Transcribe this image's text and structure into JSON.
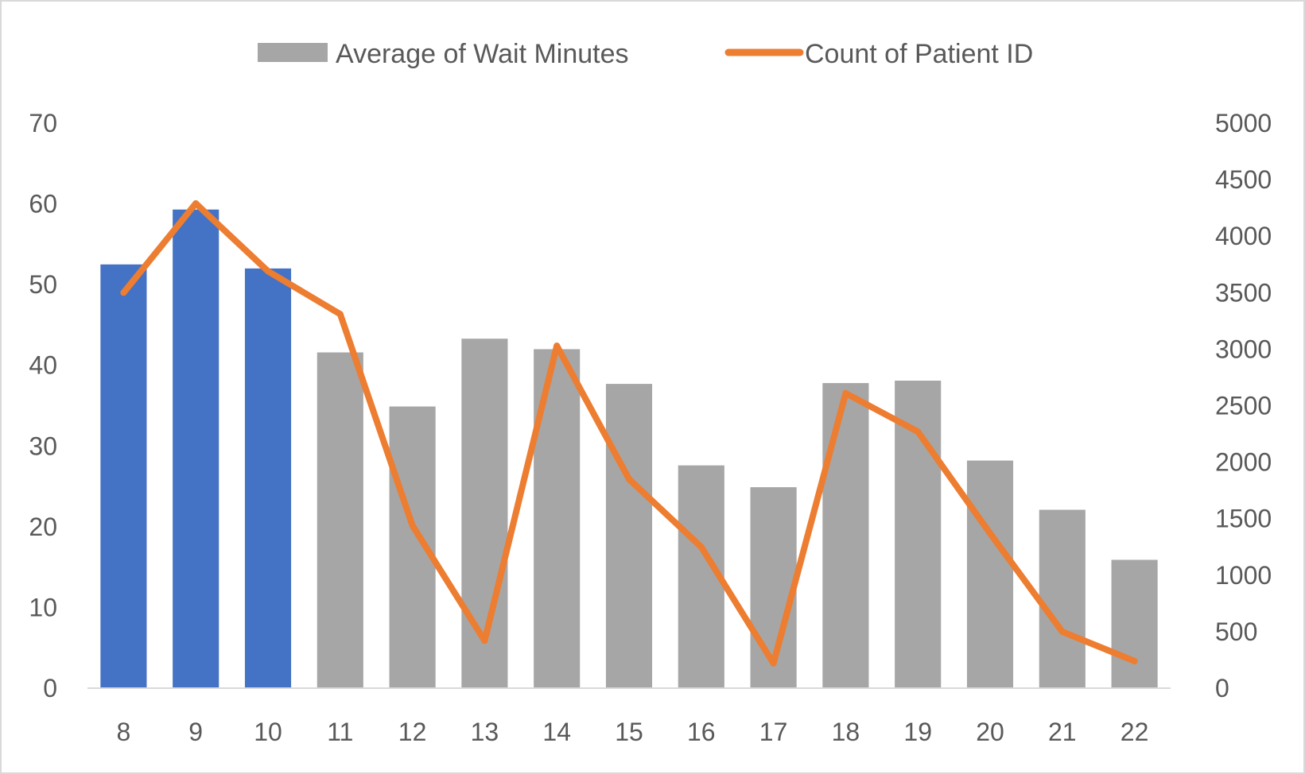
{
  "chart_data": {
    "type": "bar",
    "categories": [
      "8",
      "9",
      "10",
      "11",
      "12",
      "13",
      "14",
      "15",
      "16",
      "17",
      "18",
      "19",
      "20",
      "21",
      "22"
    ],
    "series": [
      {
        "name": "Average of Wait Minutes",
        "kind": "bar",
        "axis": "left",
        "color": "#a6a6a6",
        "highlight_color": "#4472c4",
        "highlight_categories": [
          "8",
          "9",
          "10"
        ],
        "values": [
          52.5,
          59.3,
          52,
          41.6,
          34.9,
          43.3,
          42,
          37.7,
          27.6,
          24.9,
          37.8,
          38.1,
          28.2,
          22.1,
          15.9
        ]
      },
      {
        "name": "Count of Patient ID",
        "kind": "line",
        "axis": "right",
        "color": "#ed7d31",
        "values": [
          3500,
          4290,
          3690,
          3310,
          1440,
          420,
          3030,
          1850,
          1250,
          220,
          2610,
          2270,
          1370,
          500,
          240
        ]
      }
    ],
    "y_left": {
      "min": 0,
      "max": 70,
      "ticks": [
        "0",
        "10",
        "20",
        "30",
        "40",
        "50",
        "60",
        "70"
      ]
    },
    "y_right": {
      "min": 0,
      "max": 5000,
      "ticks": [
        "0",
        "500",
        "1000",
        "1500",
        "2000",
        "2500",
        "3000",
        "3500",
        "4000",
        "4500",
        "5000"
      ]
    },
    "legend": {
      "placement": "top",
      "items": [
        "Average of Wait Minutes",
        "Count of Patient ID"
      ]
    },
    "grid": false
  }
}
